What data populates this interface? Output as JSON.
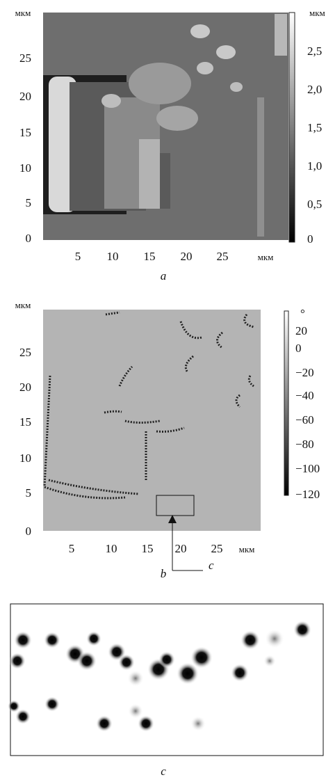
{
  "panels": [
    {
      "y_axis": {
        "unit": "мкм",
        "ticks": [
          "25",
          "20",
          "15",
          "10",
          "5",
          "0"
        ]
      },
      "x_axis": {
        "ticks": [
          "5",
          "10",
          "15",
          "20",
          "25"
        ],
        "unit": "мкм"
      },
      "colorbar": {
        "unit": "мкм",
        "ticks": [
          "2,5",
          "2,0",
          "1,5",
          "1,0",
          "0,5",
          "0"
        ]
      },
      "label": "a"
    },
    {
      "y_axis": {
        "unit": "мкм",
        "ticks": [
          "25",
          "20",
          "15",
          "10",
          "5",
          "0"
        ]
      },
      "x_axis": {
        "ticks": [
          "5",
          "10",
          "15",
          "20",
          "25"
        ],
        "unit": "мкм"
      },
      "colorbar": {
        "unit": "°",
        "ticks": [
          "20",
          "0",
          "−20",
          "−40",
          "−60",
          "−80",
          "−100",
          "−120"
        ]
      },
      "label": "b",
      "callout": "c"
    },
    {
      "label": "c"
    }
  ]
}
